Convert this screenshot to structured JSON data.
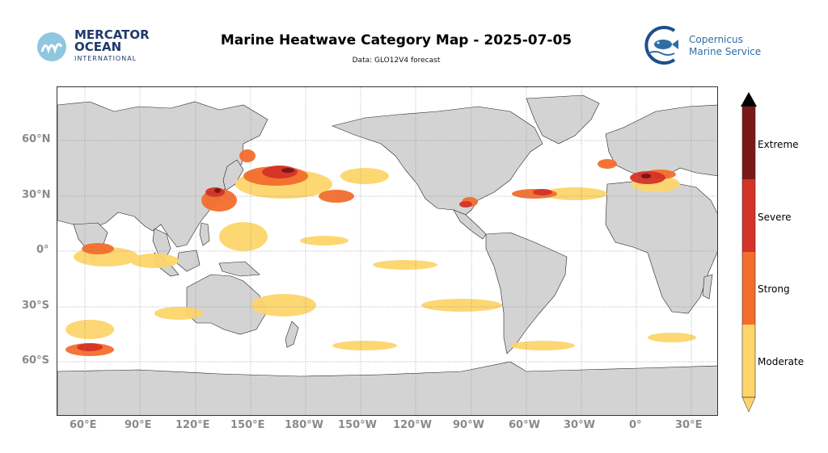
{
  "header": {
    "title": "Marine Heatwave Category Map - 2025-07-05",
    "subtitle": "Data: GLO12V4 forecast"
  },
  "logos": {
    "mercator_line1": "MERCATOR",
    "mercator_line2": "OCEAN",
    "mercator_line3": "INTERNATIONAL",
    "copernicus_line1": "Copernicus",
    "copernicus_line2": "Marine Service"
  },
  "axes": {
    "lat_labels": [
      "60°N",
      "30°N",
      "0°",
      "30°S",
      "60°S"
    ],
    "lon_labels": [
      "60°E",
      "90°E",
      "120°E",
      "150°E",
      "180°W",
      "150°W",
      "120°W",
      "90°W",
      "60°W",
      "30°W",
      "0°",
      "30°E"
    ]
  },
  "legend": {
    "categories": [
      "Moderate",
      "Strong",
      "Severe",
      "Extreme"
    ],
    "colors": {
      "moderate": "#fdd56b",
      "strong": "#f46d2c",
      "severe": "#d43327",
      "extreme": "#7b1717",
      "land": "#d3d3d3",
      "ocean": "#ffffff"
    }
  }
}
